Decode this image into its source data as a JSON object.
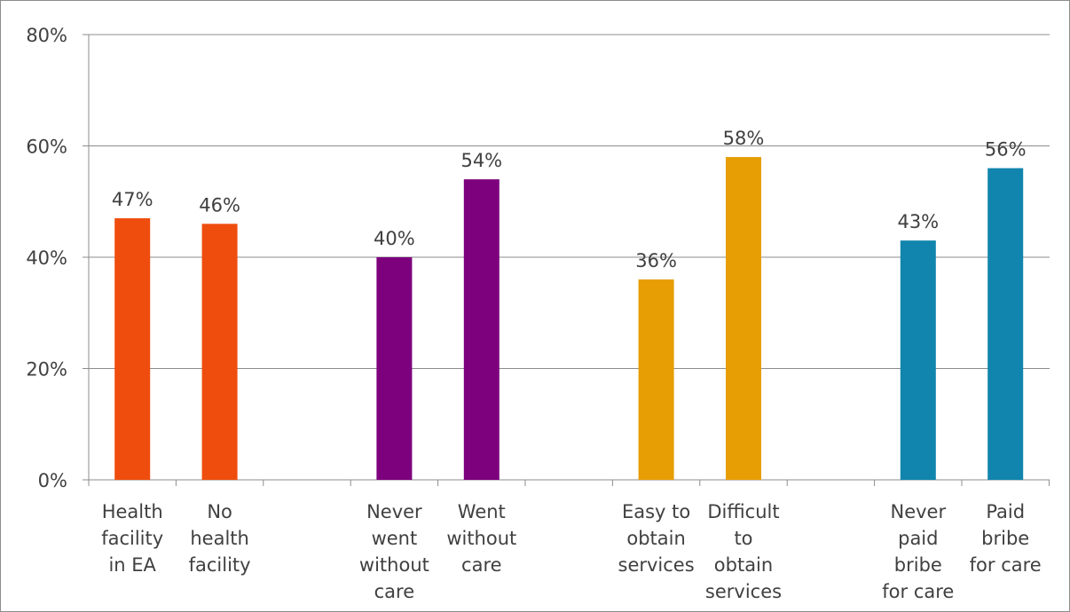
{
  "chart_data": {
    "type": "bar",
    "title": "",
    "xlabel": "",
    "ylabel": "",
    "ylim": [
      0,
      80
    ],
    "yticks": [
      "0%",
      "20%",
      "40%",
      "60%",
      "80%"
    ],
    "grid": true,
    "legend": "none",
    "groups": [
      {
        "color": "#ee4d0e",
        "bars": [
          {
            "label": [
              "Health",
              "facility",
              "in EA"
            ],
            "value": 47,
            "text": "47%"
          },
          {
            "label": [
              "No",
              "health",
              "facility"
            ],
            "value": 46,
            "text": "46%"
          }
        ]
      },
      {
        "color": "#7d007d",
        "bars": [
          {
            "label": [
              "Never",
              "went",
              "without",
              "care"
            ],
            "value": 40,
            "text": "40%"
          },
          {
            "label": [
              "Went",
              "without",
              "care"
            ],
            "value": 54,
            "text": "54%"
          }
        ]
      },
      {
        "color": "#e79d04",
        "bars": [
          {
            "label": [
              "Easy to",
              "obtain",
              "services"
            ],
            "value": 36,
            "text": "36%"
          },
          {
            "label": [
              "Difficult",
              "to",
              "obtain",
              "services"
            ],
            "value": 58,
            "text": "58%"
          }
        ]
      },
      {
        "color": "#1185ad",
        "bars": [
          {
            "label": [
              "Never",
              "paid",
              "bribe",
              "for care"
            ],
            "value": 43,
            "text": "43%"
          },
          {
            "label": [
              "Paid",
              "bribe",
              "for care"
            ],
            "value": 56,
            "text": "56%"
          }
        ]
      }
    ]
  },
  "colors": {
    "axis": "#8c8c8c",
    "grid": "#8c8c8c",
    "text": "#404040"
  }
}
